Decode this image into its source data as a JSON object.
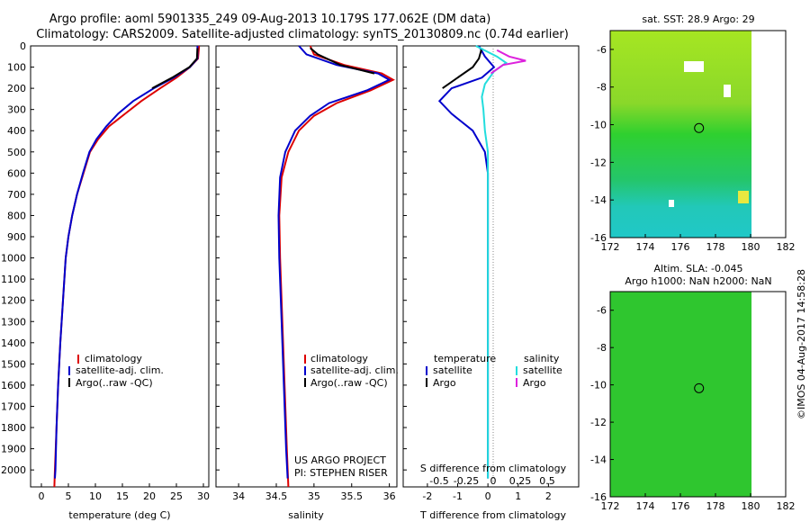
{
  "header": {
    "line1": "Argo profile: aoml 5901335_249 09-Aug-2013 10.179S 177.062E (DM data)",
    "line2": "Climatology: CARS2009. Satellite-adjusted climatology: synTS_20130809.nc (0.74d earlier)"
  },
  "footer": {
    "credit": "©IMOS 04-Aug-2017 14:58:28",
    "project_line1": "US ARGO PROJECT",
    "project_line2": "PI: STEPHEN RISER"
  },
  "colors": {
    "climatology": "#dd0000",
    "satellite": "#0000cc",
    "argo": "#000000",
    "salinity_satellite": "#22dddd",
    "salinity_argo": "#dd22dd"
  },
  "chart_data": [
    {
      "type": "line",
      "xlabel": "temperature (deg C)",
      "ylabel": "",
      "xlim": [
        -2,
        31
      ],
      "ylim": [
        2080,
        0
      ],
      "xticks": [
        0,
        5,
        10,
        15,
        20,
        25,
        30
      ],
      "yticks": [
        0,
        100,
        200,
        300,
        400,
        500,
        600,
        700,
        800,
        900,
        1000,
        1100,
        1200,
        1300,
        1400,
        1500,
        1600,
        1700,
        1800,
        1900,
        2000
      ],
      "legend": [
        "climatology",
        "satellite-adj. clim.",
        "Argo(..raw -QC)"
      ],
      "series": [
        {
          "name": "climatology",
          "points": [
            [
              29.2,
              0
            ],
            [
              29.0,
              60
            ],
            [
              27.5,
              100
            ],
            [
              25.0,
              150
            ],
            [
              22.0,
              200
            ],
            [
              18.5,
              260
            ],
            [
              15.5,
              320
            ],
            [
              12.5,
              380
            ],
            [
              10.5,
              440
            ],
            [
              9.0,
              500
            ],
            [
              7.8,
              600
            ],
            [
              6.6,
              700
            ],
            [
              5.7,
              800
            ],
            [
              5.0,
              900
            ],
            [
              4.5,
              1000
            ],
            [
              4.0,
              1200
            ],
            [
              3.5,
              1400
            ],
            [
              3.1,
              1600
            ],
            [
              2.8,
              1800
            ],
            [
              2.5,
              2000
            ],
            [
              2.4,
              2080
            ]
          ]
        },
        {
          "name": "satellite-adj. clim.",
          "points": [
            [
              28.9,
              0
            ],
            [
              28.9,
              60
            ],
            [
              27.5,
              100
            ],
            [
              24.5,
              150
            ],
            [
              20.8,
              200
            ],
            [
              17.0,
              260
            ],
            [
              14.2,
              320
            ],
            [
              12.0,
              380
            ],
            [
              10.2,
              440
            ],
            [
              8.9,
              500
            ],
            [
              7.7,
              600
            ],
            [
              6.6,
              700
            ],
            [
              5.7,
              800
            ],
            [
              5.0,
              900
            ],
            [
              4.5,
              1000
            ],
            [
              4.0,
              1200
            ],
            [
              3.5,
              1400
            ],
            [
              3.1,
              1600
            ],
            [
              2.8,
              1800
            ],
            [
              2.6,
              2000
            ],
            [
              2.5,
              2040
            ]
          ]
        },
        {
          "name": "Argo(..raw -QC)",
          "points": [
            [
              28.9,
              10
            ],
            [
              28.8,
              60
            ],
            [
              27.4,
              100
            ],
            [
              24.2,
              150
            ],
            [
              20.5,
              200
            ]
          ]
        }
      ]
    },
    {
      "type": "line",
      "xlabel": "salinity",
      "ylabel": "",
      "xlim": [
        33.7,
        36.1
      ],
      "ylim": [
        2080,
        0
      ],
      "xticks": [
        34,
        34.5,
        35,
        35.5,
        36
      ],
      "legend": [
        "climatology",
        "satellite-adj. clim.",
        "Argo(..raw -QC)"
      ],
      "series": [
        {
          "name": "climatology",
          "points": [
            [
              34.95,
              0
            ],
            [
              35.0,
              40
            ],
            [
              35.4,
              90
            ],
            [
              35.9,
              130
            ],
            [
              36.05,
              160
            ],
            [
              35.75,
              210
            ],
            [
              35.3,
              270
            ],
            [
              35.0,
              330
            ],
            [
              34.8,
              400
            ],
            [
              34.66,
              500
            ],
            [
              34.57,
              620
            ],
            [
              34.54,
              800
            ],
            [
              34.55,
              1000
            ],
            [
              34.58,
              1300
            ],
            [
              34.61,
              1600
            ],
            [
              34.64,
              1900
            ],
            [
              34.66,
              2080
            ]
          ]
        },
        {
          "name": "satellite-adj. clim.",
          "points": [
            [
              34.8,
              0
            ],
            [
              34.9,
              40
            ],
            [
              35.3,
              90
            ],
            [
              35.85,
              130
            ],
            [
              36.0,
              160
            ],
            [
              35.7,
              210
            ],
            [
              35.2,
              270
            ],
            [
              34.95,
              330
            ],
            [
              34.75,
              400
            ],
            [
              34.62,
              500
            ],
            [
              34.55,
              620
            ],
            [
              34.53,
              800
            ],
            [
              34.54,
              1000
            ],
            [
              34.57,
              1300
            ],
            [
              34.6,
              1600
            ],
            [
              34.63,
              1900
            ],
            [
              34.65,
              2040
            ]
          ]
        },
        {
          "name": "Argo(..raw -QC)",
          "points": [
            [
              34.95,
              10
            ],
            [
              35.05,
              40
            ],
            [
              35.35,
              90
            ],
            [
              35.8,
              130
            ]
          ]
        }
      ]
    },
    {
      "type": "line",
      "xlabel": "T difference from climatology",
      "x2label": "S difference from climatology",
      "ylim": [
        2080,
        0
      ],
      "xlim": [
        -2.8,
        3.0
      ],
      "xticks": [
        -2,
        -1,
        0,
        1,
        2
      ],
      "x2ticks": [
        -0.5,
        -0.25,
        0,
        0.25,
        0.5
      ],
      "legend": {
        "headers": [
          "temperature",
          "salinity"
        ],
        "entries": [
          "satellite",
          "Argo",
          "satellite",
          "Argo"
        ]
      },
      "series": [
        {
          "name": "temperature satellite",
          "points": [
            [
              -0.3,
              0
            ],
            [
              -0.1,
              50
            ],
            [
              0.2,
              100
            ],
            [
              -0.2,
              150
            ],
            [
              -1.2,
              200
            ],
            [
              -1.6,
              260
            ],
            [
              -1.2,
              320
            ],
            [
              -0.5,
              400
            ],
            [
              -0.1,
              500
            ],
            [
              0.0,
              600
            ],
            [
              0.0,
              1000
            ],
            [
              0.0,
              1500
            ],
            [
              0.0,
              2040
            ]
          ]
        },
        {
          "name": "temperature Argo",
          "points": [
            [
              -0.2,
              10
            ],
            [
              -0.3,
              60
            ],
            [
              -0.5,
              100
            ],
            [
              -1.0,
              150
            ],
            [
              -1.5,
              200
            ]
          ]
        },
        {
          "name": "salinity satellite",
          "points": [
            [
              -0.4,
              0
            ],
            [
              0.3,
              50
            ],
            [
              0.6,
              80
            ],
            [
              0.2,
              120
            ],
            [
              -0.1,
              180
            ],
            [
              -0.2,
              240
            ],
            [
              -0.15,
              300
            ],
            [
              -0.1,
              400
            ],
            [
              0.0,
              500
            ],
            [
              0.0,
              1000
            ],
            [
              0.0,
              1500
            ],
            [
              0.0,
              2040
            ]
          ]
        },
        {
          "name": "salinity Argo",
          "points": [
            [
              0.3,
              20
            ],
            [
              0.7,
              50
            ],
            [
              1.25,
              70
            ],
            [
              0.5,
              90
            ],
            [
              0.1,
              130
            ]
          ]
        }
      ]
    },
    {
      "type": "heatmap",
      "title": "sat. SST: 28.9 Argo: 29",
      "xlim": [
        172,
        182
      ],
      "ylim": [
        -16,
        -5
      ],
      "xticks": [
        172,
        174,
        176,
        178,
        180,
        182
      ],
      "yticks": [
        -6,
        -8,
        -10,
        -12,
        -14,
        -16
      ],
      "profile_location": [
        177.062,
        -10.179
      ]
    },
    {
      "type": "heatmap",
      "title_line1": "Altim. SLA: -0.045",
      "title_line2": "Argo h1000: NaN h2000: NaN",
      "xlim": [
        172,
        182
      ],
      "ylim": [
        -16,
        -5
      ],
      "xticks": [
        172,
        174,
        176,
        178,
        180,
        182
      ],
      "yticks": [
        -6,
        -8,
        -10,
        -12,
        -14,
        -16
      ],
      "profile_location": [
        177.062,
        -10.179
      ]
    }
  ]
}
